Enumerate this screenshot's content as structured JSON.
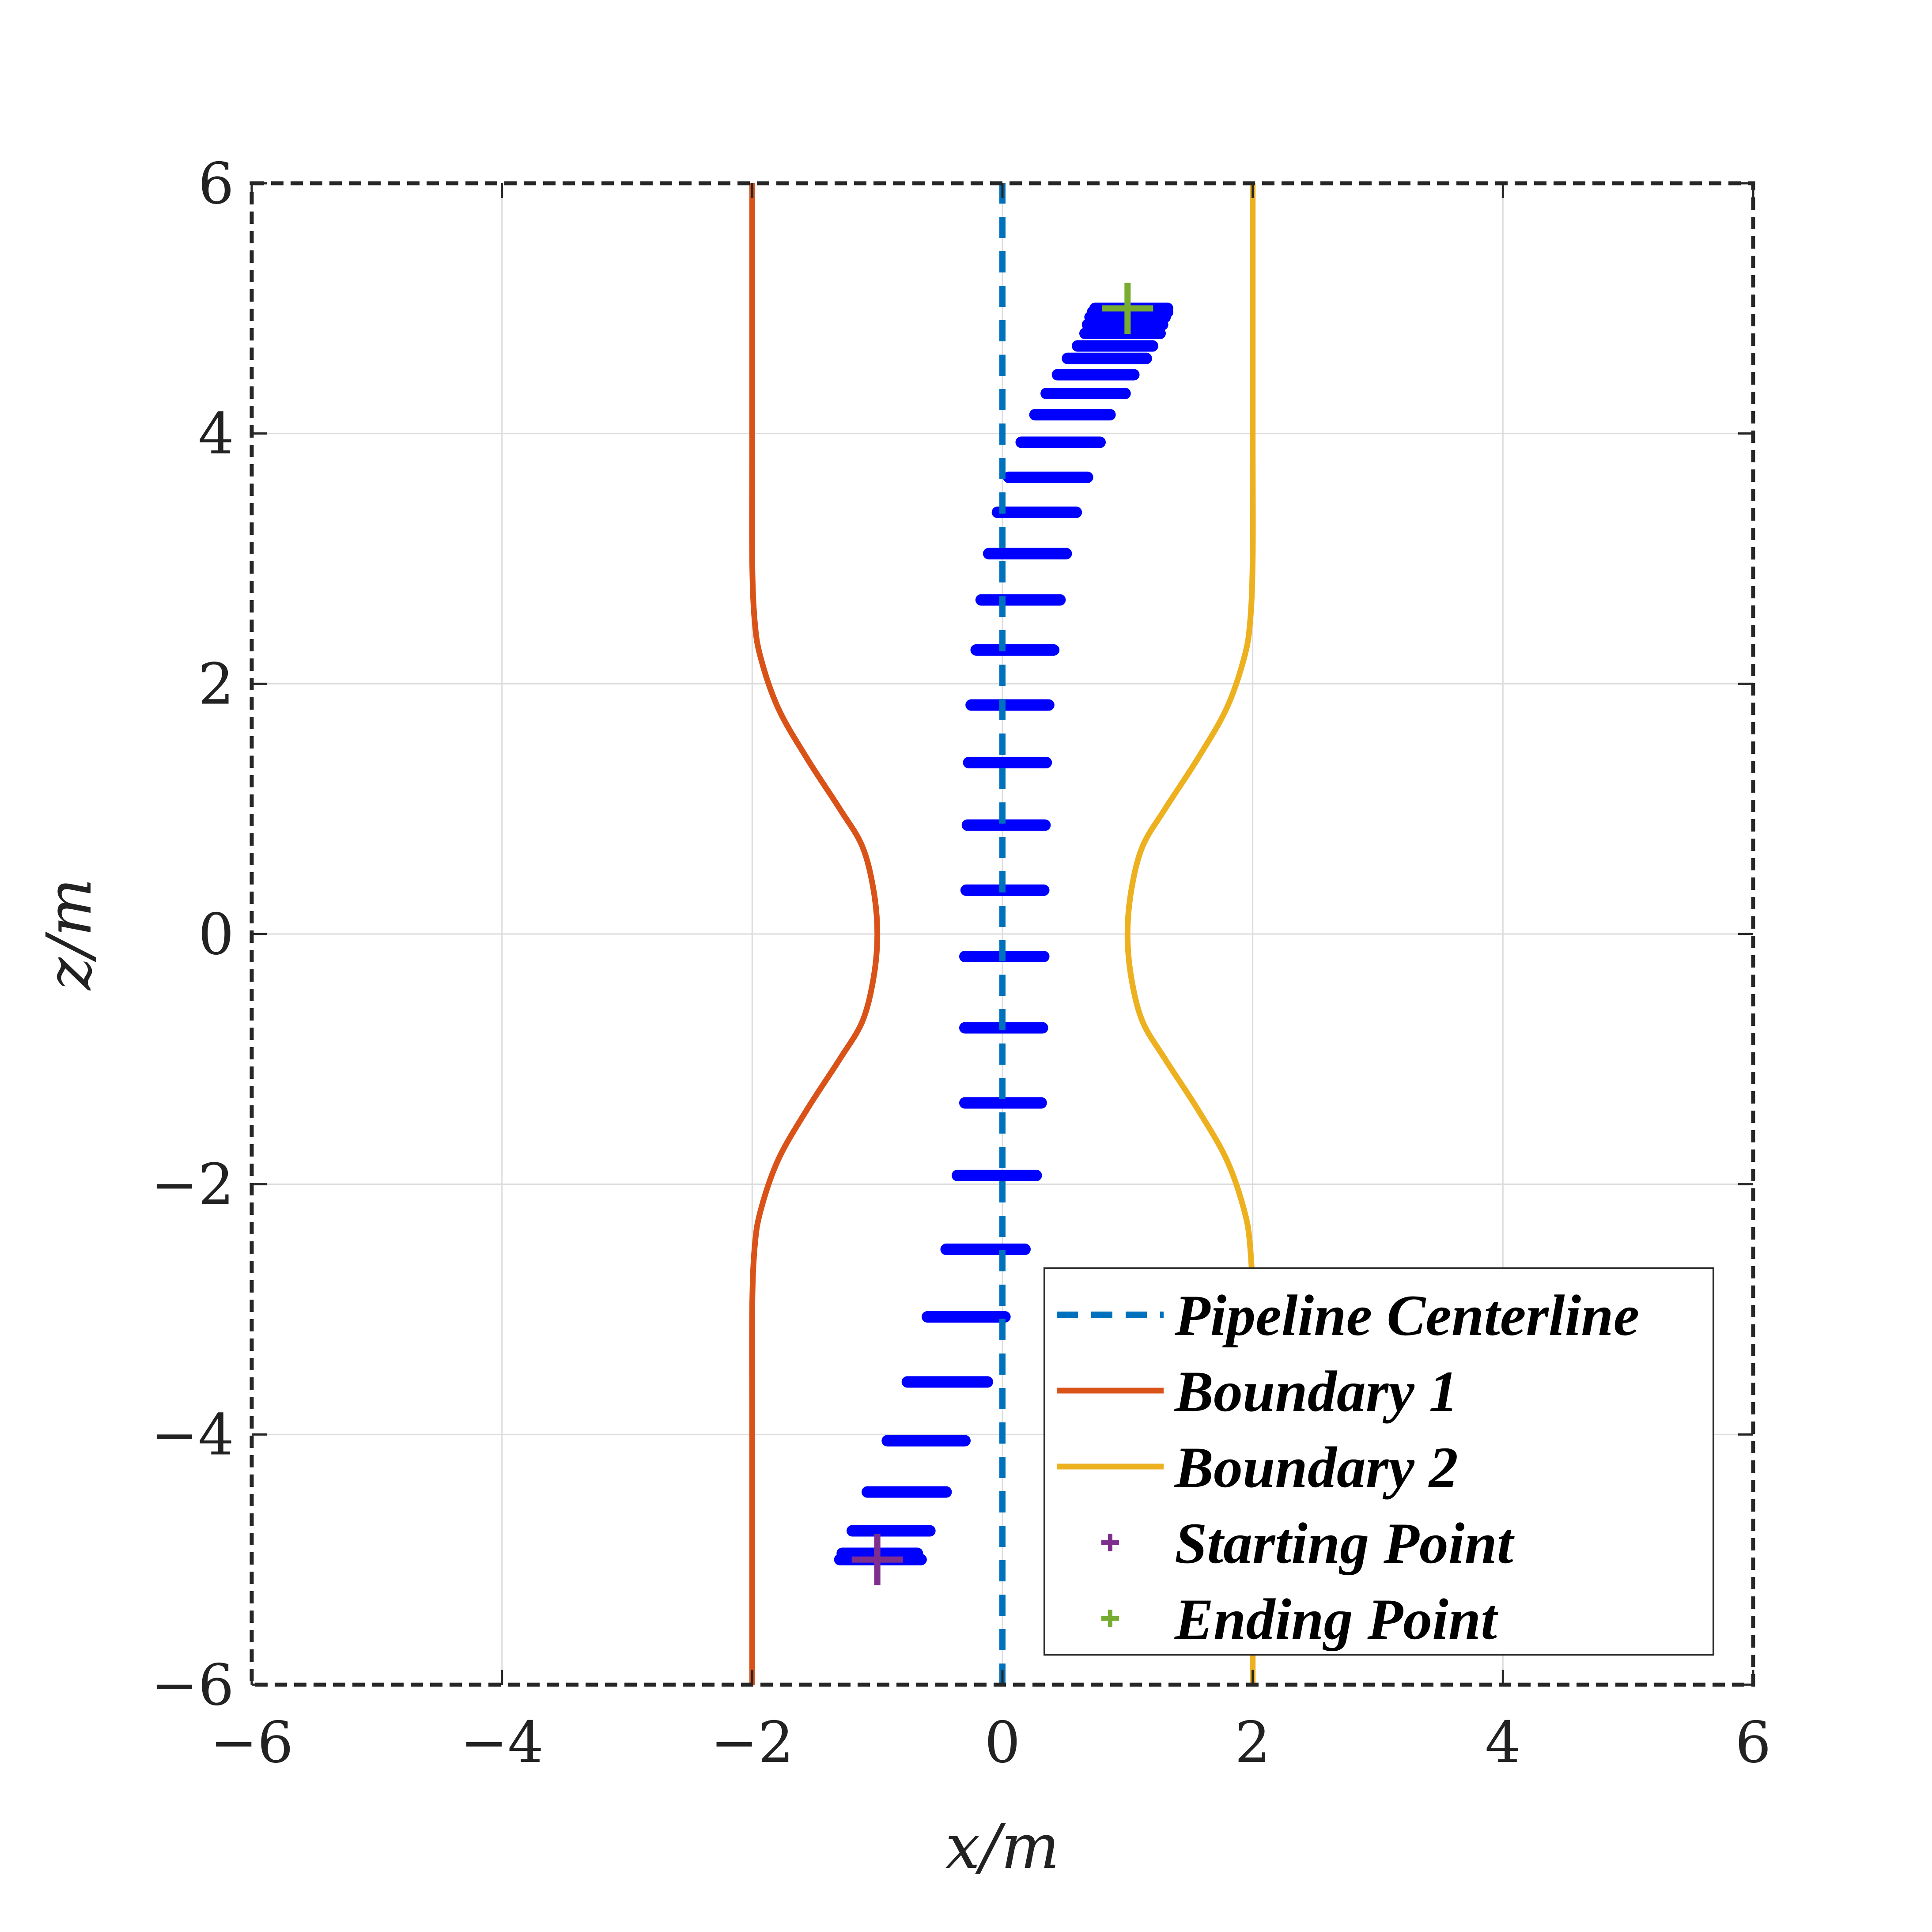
{
  "chart_data": {
    "type": "line",
    "xlabel": "x/m",
    "ylabel": "z/m",
    "xlim": [
      -6,
      6
    ],
    "ylim": [
      -6,
      6
    ],
    "x_ticks": [
      -6,
      -4,
      -2,
      0,
      2,
      4,
      6
    ],
    "y_ticks": [
      -6,
      -4,
      -2,
      0,
      2,
      4,
      6
    ],
    "x_tick_labels": [
      "−6",
      "−4",
      "−2",
      "0",
      "2",
      "4",
      "6"
    ],
    "y_tick_labels": [
      "−6",
      "−4",
      "−2",
      "0",
      "2",
      "4",
      "6"
    ],
    "grid": true,
    "legend_position": "bottom-right",
    "series": [
      {
        "name": "Pipeline Centerline",
        "color": "#0072BD",
        "style": "dashed",
        "x": [
          0,
          0
        ],
        "y": [
          -6,
          6
        ]
      },
      {
        "name": "Boundary 1",
        "color": "#D95319",
        "style": "solid",
        "x": [
          -2,
          -2,
          -2,
          -1.98,
          -1.93,
          -1.79,
          -1.56,
          -1.3,
          -1.12,
          -1.03,
          -1.0,
          -1.03,
          -1.12,
          -1.3,
          -1.56,
          -1.79,
          -1.93,
          -1.98,
          -2,
          -2,
          -2
        ],
        "y": [
          -6,
          -4,
          -3,
          -2.5,
          -2.2,
          -1.8,
          -1.4,
          -1.0,
          -0.7,
          -0.35,
          0,
          0.35,
          0.7,
          1.0,
          1.4,
          1.8,
          2.2,
          2.5,
          3,
          4,
          6
        ]
      },
      {
        "name": "Boundary 2",
        "color": "#EDB120",
        "style": "solid",
        "x": [
          2,
          2,
          2,
          1.98,
          1.93,
          1.79,
          1.56,
          1.3,
          1.12,
          1.03,
          1.0,
          1.03,
          1.12,
          1.3,
          1.56,
          1.79,
          1.93,
          1.98,
          2,
          2,
          2
        ],
        "y": [
          -6,
          -4,
          -3,
          -2.5,
          -2.2,
          -1.8,
          -1.4,
          -1.0,
          -0.7,
          -0.35,
          0,
          0.35,
          0.7,
          1.0,
          1.4,
          1.8,
          2.2,
          2.5,
          3,
          4,
          6
        ]
      },
      {
        "name": "Starting Point",
        "color": "#7E2F8E",
        "marker": "+",
        "x": [
          -1.0
        ],
        "y": [
          -5.0
        ]
      },
      {
        "name": "Ending Point",
        "color": "#77AC30",
        "marker": "+",
        "x": [
          1.0
        ],
        "y": [
          5.0
        ]
      }
    ],
    "blue_segments": {
      "color": "#0000FF",
      "items": [
        {
          "z": -5.0,
          "x1": -1.3,
          "x2": -0.65
        },
        {
          "z": -4.95,
          "x1": -1.28,
          "x2": -0.68
        },
        {
          "z": -4.77,
          "x1": -1.2,
          "x2": -0.58
        },
        {
          "z": -4.46,
          "x1": -1.08,
          "x2": -0.45
        },
        {
          "z": -4.05,
          "x1": -0.92,
          "x2": -0.3
        },
        {
          "z": -3.58,
          "x1": -0.76,
          "x2": -0.12
        },
        {
          "z": -3.06,
          "x1": -0.6,
          "x2": 0.02
        },
        {
          "z": -2.52,
          "x1": -0.45,
          "x2": 0.18
        },
        {
          "z": -1.93,
          "x1": -0.36,
          "x2": 0.27
        },
        {
          "z": -1.35,
          "x1": -0.3,
          "x2": 0.31
        },
        {
          "z": -0.75,
          "x1": -0.3,
          "x2": 0.32
        },
        {
          "z": -0.18,
          "x1": -0.3,
          "x2": 0.33
        },
        {
          "z": 0.35,
          "x1": -0.29,
          "x2": 0.33
        },
        {
          "z": 0.87,
          "x1": -0.28,
          "x2": 0.34
        },
        {
          "z": 1.37,
          "x1": -0.27,
          "x2": 0.35
        },
        {
          "z": 1.83,
          "x1": -0.25,
          "x2": 0.37
        },
        {
          "z": 2.27,
          "x1": -0.21,
          "x2": 0.41
        },
        {
          "z": 2.67,
          "x1": -0.17,
          "x2": 0.46
        },
        {
          "z": 3.04,
          "x1": -0.11,
          "x2": 0.51
        },
        {
          "z": 3.37,
          "x1": -0.04,
          "x2": 0.59
        },
        {
          "z": 3.65,
          "x1": 0.05,
          "x2": 0.68
        },
        {
          "z": 3.93,
          "x1": 0.15,
          "x2": 0.78
        },
        {
          "z": 4.15,
          "x1": 0.26,
          "x2": 0.86
        },
        {
          "z": 4.32,
          "x1": 0.35,
          "x2": 0.98
        },
        {
          "z": 4.47,
          "x1": 0.44,
          "x2": 1.05
        },
        {
          "z": 4.6,
          "x1": 0.52,
          "x2": 1.15
        },
        {
          "z": 4.7,
          "x1": 0.6,
          "x2": 1.2
        },
        {
          "z": 4.8,
          "x1": 0.66,
          "x2": 1.26
        },
        {
          "z": 4.87,
          "x1": 0.68,
          "x2": 1.28
        },
        {
          "z": 4.93,
          "x1": 0.7,
          "x2": 1.3
        },
        {
          "z": 4.97,
          "x1": 0.72,
          "x2": 1.32
        },
        {
          "z": 5.0,
          "x1": 0.74,
          "x2": 1.32
        }
      ]
    }
  }
}
